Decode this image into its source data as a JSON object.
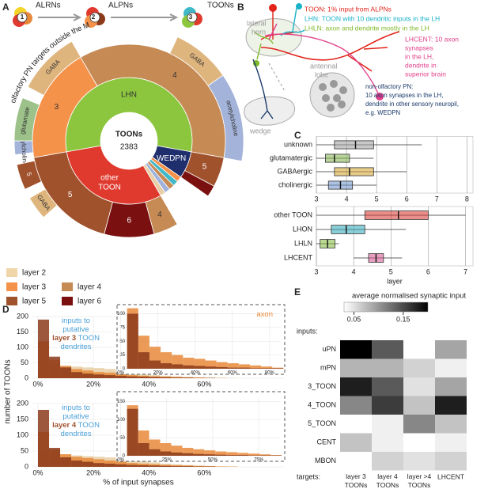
{
  "panel_labels": [
    "A",
    "B",
    "C",
    "D",
    "E"
  ],
  "flow": [
    {
      "number": 1,
      "label": "ALRNs"
    },
    {
      "number": 2,
      "label": "ALPNs"
    },
    {
      "number": 3,
      "label": "TOONs"
    }
  ],
  "arc_title": "olfactory PN targets outside the MB",
  "diagram": {
    "regions": [
      [
        "lateral",
        "horn"
      ],
      [
        "antennal",
        "lobe"
      ],
      [
        "wedge"
      ]
    ],
    "definitions": [
      {
        "color": "#e2231a",
        "lines": [
          "TOON: 1% input from ALPNs"
        ]
      },
      {
        "color": "#19b2c9",
        "lines": [
          "LHN: TOON with 10 dendritic inputs in the LH"
        ]
      },
      {
        "color": "#7fb82a",
        "lines": [
          "LHLN: axon and dendrite mostly in the LH"
        ]
      },
      {
        "color": "#e0408a",
        "lines": [
          "LHCENT: 10 axon",
          "synapses",
          "in the LH,",
          "dendrite in",
          "superior brain"
        ]
      },
      {
        "color": "#1a3a6a",
        "lines": [
          "non-olfactory PN:",
          "10 axon synapses in the LH,",
          "dendrite in other sensory neuropil,",
          "e.g. WEDPN"
        ]
      }
    ]
  },
  "chart_data": [
    {
      "type": "sunburst",
      "center_title": "TOONs",
      "total": 2383,
      "rings": [
        [
          {
            "name": "LHN",
            "value": 1324,
            "color": "#8cc63f"
          },
          {
            "name": "WEDPN",
            "value": 165,
            "color": "#1f2f6e"
          },
          {
            "name": null,
            "value": 33,
            "color": "#f4924a"
          },
          {
            "name": null,
            "value": 33,
            "color": "#3fb8c8"
          },
          {
            "name": null,
            "value": 33,
            "color": "#c68a55"
          },
          {
            "name": null,
            "value": 33,
            "color": "#9fb3dc"
          },
          {
            "name": null,
            "value": 33,
            "color": "#e8cfa6"
          },
          {
            "name": "other TOON",
            "value": 729,
            "color": "#e03a2e"
          }
        ],
        [
          {
            "name": "3",
            "value": 463,
            "color": "#f4924a"
          },
          {
            "name": "4",
            "value": 861,
            "color": "#c68a55"
          },
          {
            "name": "5",
            "value": 119,
            "color": "#a0522d"
          },
          {
            "name": null,
            "value": 46,
            "color": "#7a1010"
          },
          {
            "name": null,
            "value": 165,
            "color": null
          },
          {
            "name": "4",
            "value": 99,
            "color": "#c68a55"
          },
          {
            "name": "6",
            "value": 199,
            "color": "#7a1010"
          },
          {
            "name": "5",
            "value": 431,
            "color": "#a0522d"
          }
        ],
        [
          {
            "name": null,
            "value": 20,
            "color": null
          },
          {
            "name": "acetylcholine",
            "value": 46,
            "color": "#a3b3d9"
          },
          {
            "name": "glutamate",
            "value": 146,
            "color": "#9cc28a"
          },
          {
            "name": null,
            "value": 40,
            "color": null
          },
          {
            "name": "GABA",
            "value": 212,
            "color": "#dfb57e"
          },
          {
            "name": null,
            "value": 364,
            "color": null
          },
          {
            "name": "GABA",
            "value": 199,
            "color": "#dfb57e"
          },
          {
            "name": "acetylcholine",
            "value": 298,
            "color": "#a3b3d9"
          },
          {
            "name": null,
            "value": 847,
            "color": null
          },
          {
            "name": "GABA",
            "value": 79,
            "color": "#dfb57e"
          },
          {
            "name": null,
            "value": 33,
            "color": null
          },
          {
            "name": "5",
            "value": 86,
            "color": "#a0522d"
          },
          {
            "name": null,
            "value": 13,
            "color": null
          }
        ]
      ],
      "legend": [
        {
          "label": "layer 2",
          "color": "#f0d5a8"
        },
        {
          "label": "layer 3",
          "color": "#f4924a"
        },
        {
          "label": "layer 4",
          "color": "#c68a55"
        },
        {
          "label": "layer 5",
          "color": "#a0522d"
        },
        {
          "label": "layer 6",
          "color": "#7a1010"
        }
      ]
    },
    {
      "type": "boxplot",
      "categories": [
        "unknown",
        "glutamatergic",
        "GABAergic",
        "cholinergic"
      ],
      "colors": [
        "#9a9a9a",
        "#7fb24a",
        "#d4a02a",
        "#6a8fc8"
      ],
      "boxes": [
        {
          "low": 3.0,
          "q1": 3.6,
          "median": 4.3,
          "q3": 4.9,
          "high": 6.5
        },
        {
          "low": 3.0,
          "q1": 3.3,
          "median": 3.6,
          "q3": 4.1,
          "high": 4.9
        },
        {
          "low": 3.0,
          "q1": 3.6,
          "median": 4.1,
          "q3": 4.9,
          "high": 6.0
        },
        {
          "low": 3.0,
          "q1": 3.4,
          "median": 3.8,
          "q3": 4.2,
          "high": 5.0
        }
      ],
      "xlim": [
        3,
        8.2
      ],
      "xticks": [
        3,
        4,
        5,
        6,
        7,
        8
      ],
      "grid": true
    },
    {
      "type": "boxplot",
      "categories": [
        "other TOON",
        "LHON",
        "LHLN",
        "LHCENT"
      ],
      "colors": [
        "#d7332b",
        "#2aa6b8",
        "#7fba3a",
        "#d4508a"
      ],
      "boxes": [
        {
          "low": 3.0,
          "q1": 4.3,
          "median": 5.2,
          "q3": 6.0,
          "high": 7.0
        },
        {
          "low": 3.0,
          "q1": 3.4,
          "median": 3.8,
          "q3": 4.3,
          "high": 5.4
        },
        {
          "low": 3.0,
          "q1": 3.1,
          "median": 3.3,
          "q3": 3.5,
          "high": 3.6
        },
        {
          "low": 4.0,
          "q1": 4.4,
          "median": 4.6,
          "q3": 4.8,
          "high": 5.3
        }
      ],
      "xlim": [
        3,
        7.2
      ],
      "xticks": [
        3,
        4,
        5,
        6,
        7
      ],
      "xlabel": "layer",
      "grid": true
    },
    {
      "type": "histogram",
      "ylabel": "number of TOONs",
      "annotation": [
        [
          "inputs to"
        ],
        [
          "putative"
        ],
        [
          "layer 3",
          " TOON"
        ],
        [
          "dendrites"
        ]
      ],
      "bins": [
        0,
        4,
        8,
        12,
        16,
        20,
        24,
        28,
        32,
        36,
        40,
        44,
        48,
        52,
        56,
        60,
        64,
        68,
        72
      ],
      "series": [
        {
          "color": "#e8cfa6",
          "values": [
            60,
            45,
            40,
            38,
            35,
            33,
            30,
            25,
            20,
            15,
            10,
            8,
            6,
            4,
            3,
            2,
            1,
            1
          ]
        },
        {
          "color": "#e8893a",
          "values": [
            120,
            60,
            40,
            30,
            25,
            20,
            18,
            15,
            10,
            8,
            6,
            5,
            4,
            3,
            2,
            1,
            1,
            0
          ]
        },
        {
          "color": "#8b3a1a",
          "values": [
            190,
            70,
            35,
            20,
            15,
            12,
            10,
            8,
            6,
            5,
            4,
            3,
            2,
            2,
            1,
            1,
            0,
            0
          ]
        }
      ],
      "xlim": [
        -2,
        89
      ],
      "ylim": [
        0,
        200
      ],
      "xticks": [
        {
          "value": 0,
          "label": "0%"
        },
        {
          "value": 20,
          "label": "20%"
        },
        {
          "value": 40,
          "label": "40%"
        },
        {
          "value": 60,
          "label": "60%"
        }
      ],
      "yticks": [
        0,
        50,
        100,
        150,
        200
      ]
    },
    {
      "type": "histogram",
      "annotation": [
        [
          "axon"
        ]
      ],
      "bins": [
        0,
        6,
        12,
        18,
        24,
        30,
        36,
        42,
        48,
        54,
        60,
        66,
        72,
        78,
        84
      ],
      "series": [
        {
          "color": "#e8893a",
          "values": [
            110,
            60,
            40,
            30,
            25,
            20,
            18,
            15,
            12,
            10,
            8,
            6,
            4,
            2
          ]
        },
        {
          "color": "#8b3a1a",
          "values": [
            100,
            30,
            15,
            10,
            8,
            6,
            5,
            4,
            3,
            2,
            2,
            1,
            1,
            1
          ]
        }
      ],
      "xlim": [
        -2,
        86
      ],
      "ylim": [
        0,
        105
      ],
      "xticks": [
        {
          "value": 0,
          "label": "0%"
        },
        {
          "value": 20,
          "label": "20%"
        },
        {
          "value": 40,
          "label": "40%"
        },
        {
          "value": 60,
          "label": "60%"
        },
        {
          "value": 80,
          "label": "80%"
        }
      ],
      "yticks": [
        0,
        25,
        50,
        75,
        100
      ]
    },
    {
      "type": "histogram",
      "xlabel": "% of input synapses",
      "annotation": [
        [
          "inputs to"
        ],
        [
          "putative"
        ],
        [
          "layer 4",
          " TOON"
        ],
        [
          "dendrites"
        ]
      ],
      "bins": [
        0,
        4,
        8,
        12,
        16,
        20,
        24,
        28,
        32,
        36,
        40,
        44,
        48,
        52,
        56,
        60,
        64,
        68,
        72
      ],
      "series": [
        {
          "color": "#e8cfa6",
          "values": [
            50,
            40,
            38,
            36,
            34,
            32,
            30,
            26,
            22,
            18,
            14,
            10,
            8,
            6,
            4,
            3,
            2,
            1
          ]
        },
        {
          "color": "#e8893a",
          "values": [
            110,
            55,
            40,
            32,
            28,
            24,
            20,
            16,
            12,
            10,
            8,
            6,
            5,
            4,
            3,
            2,
            1,
            1
          ]
        },
        {
          "color": "#8b3a1a",
          "values": [
            180,
            60,
            30,
            20,
            16,
            12,
            10,
            8,
            6,
            5,
            4,
            3,
            2,
            2,
            1,
            1,
            0,
            0
          ]
        }
      ],
      "xlim": [
        -2,
        89
      ],
      "ylim": [
        0,
        200
      ],
      "xticks": [
        {
          "value": 0,
          "label": "0%"
        },
        {
          "value": 20,
          "label": "20%"
        },
        {
          "value": 40,
          "label": "40%"
        },
        {
          "value": 60,
          "label": "60%"
        }
      ],
      "yticks": [
        0,
        50,
        100,
        150,
        200
      ]
    },
    {
      "type": "histogram",
      "bins": [
        0,
        6,
        12,
        18,
        24,
        30,
        36,
        42,
        48,
        54,
        60,
        66,
        72,
        78,
        84
      ],
      "series": [
        {
          "color": "#e8893a",
          "values": [
            140,
            70,
            45,
            35,
            28,
            22,
            18,
            15,
            12,
            10,
            8,
            6,
            4,
            2
          ]
        },
        {
          "color": "#8b3a1a",
          "values": [
            130,
            35,
            18,
            12,
            9,
            7,
            5,
            4,
            3,
            2,
            2,
            1,
            1,
            1
          ]
        }
      ],
      "xlim": [
        -2,
        87
      ],
      "ylim": [
        0,
        160
      ],
      "xticks": [
        {
          "value": 0,
          "label": "0%"
        },
        {
          "value": 25,
          "label": "25%"
        },
        {
          "value": 50,
          "label": "50%"
        },
        {
          "value": 75,
          "label": "75%"
        }
      ],
      "yticks": [
        0,
        50,
        100,
        150
      ]
    },
    {
      "type": "heatmap",
      "colorbar_title": "average normalised synaptic input",
      "colorbar_lim": [
        0.03,
        0.2
      ],
      "colorbar_ticks": [
        0.05,
        0.15
      ],
      "rows_label": "inputs:",
      "columns_label": "targets:",
      "rows": [
        "uPN",
        "mPN",
        "3_TOON",
        "4_TOON",
        "5_TOON",
        "CENT",
        "MBON"
      ],
      "columns": [
        "layer 3 TOONs",
        "layer 4 TOONs",
        "layer >4 TOONs",
        "LHCENT"
      ],
      "values": [
        [
          0.2,
          0.14,
          0.03,
          0.09
        ],
        [
          0.08,
          0.08,
          0.06,
          0.04
        ],
        [
          0.18,
          0.14,
          0.05,
          0.09
        ],
        [
          0.11,
          0.16,
          0.07,
          0.18
        ],
        [
          0.03,
          0.04,
          0.11,
          0.07
        ],
        [
          0.07,
          0.04,
          0.03,
          0.04
        ],
        [
          0.03,
          0.06,
          0.05,
          0.06
        ]
      ]
    }
  ]
}
